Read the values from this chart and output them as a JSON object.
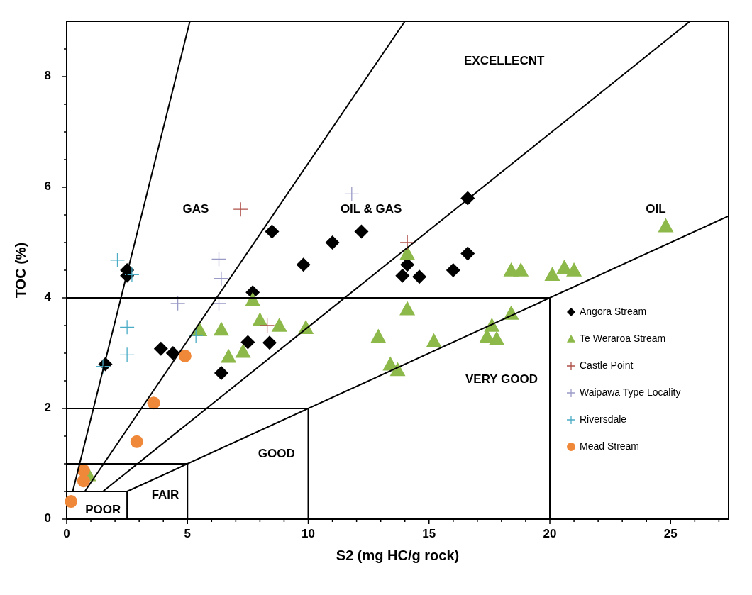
{
  "chart_data": {
    "type": "scatter",
    "xlabel": "S2 (mg HC/g rock)",
    "ylabel": "TOC (%)",
    "xlim": [
      0,
      27.4
    ],
    "xticks": [
      0,
      {
        "value": 1,
        "label": null
      },
      {
        "value": 2,
        "label": null
      },
      {
        "value": 3,
        "label": null
      },
      {
        "value": 4,
        "label": null
      },
      5,
      {
        "value": 6,
        "label": null
      },
      {
        "value": 7,
        "label": null
      },
      {
        "value": 8,
        "label": null
      },
      {
        "value": 9,
        "label": null
      },
      10,
      {
        "value": 11,
        "label": null
      },
      {
        "value": 12,
        "label": null
      },
      {
        "value": 13,
        "label": null
      },
      {
        "value": 14,
        "label": null
      },
      15,
      {
        "value": 16,
        "label": null
      },
      {
        "value": 17,
        "label": null
      },
      {
        "value": 18,
        "label": null
      },
      {
        "value": 19,
        "label": null
      },
      20,
      {
        "value": 21,
        "label": null
      },
      {
        "value": 22,
        "label": null
      },
      {
        "value": 23,
        "label": null
      },
      {
        "value": 24,
        "label": null
      },
      25,
      {
        "value": 26,
        "label": null
      },
      {
        "value": 27,
        "label": null
      }
    ],
    "ylim": [
      0,
      9
    ],
    "yticks": [
      0,
      {
        "value": 0.5,
        "label": null
      },
      {
        "value": 1,
        "label": null
      },
      {
        "value": 1.5,
        "label": null
      },
      2,
      {
        "value": 2.5,
        "label": null
      },
      {
        "value": 3,
        "label": null
      },
      {
        "value": 3.5,
        "label": null
      },
      4,
      {
        "value": 4.5,
        "label": null
      },
      {
        "value": 5,
        "label": null
      },
      {
        "value": 5.5,
        "label": null
      },
      6,
      {
        "value": 6.5,
        "label": null
      },
      {
        "value": 7,
        "label": null
      },
      {
        "value": 7.5,
        "label": null
      },
      8,
      {
        "value": 8.5,
        "label": null
      }
    ],
    "legend": "right",
    "series": [
      {
        "name": "Angora Stream",
        "color": "#000000",
        "marker": "diamond",
        "x": [
          1.6,
          2.5,
          2.5,
          3.9,
          4.4,
          6.4,
          7.5,
          8.4,
          7.7,
          8.5,
          9.8,
          11.0,
          12.2,
          16.6,
          13.9,
          14.1,
          14.6,
          16.0,
          16.6
        ],
        "values": [
          2.8,
          4.5,
          4.4,
          3.08,
          3.0,
          2.64,
          3.2,
          3.19,
          4.1,
          5.2,
          4.6,
          5.0,
          5.2,
          5.8,
          4.4,
          4.6,
          4.38,
          4.5,
          4.8
        ]
      },
      {
        "name": "Te Weraroa Stream",
        "color": "#8db84a",
        "marker": "triangle",
        "x": [
          0.9,
          5.5,
          6.4,
          6.7,
          7.3,
          7.7,
          8.0,
          8.8,
          9.9,
          12.9,
          13.4,
          13.7,
          14.1,
          14.1,
          15.2,
          17.4,
          17.6,
          17.8,
          18.4,
          18.4,
          18.8,
          20.1,
          20.6,
          21.0,
          24.8
        ],
        "values": [
          0.8,
          3.42,
          3.43,
          2.94,
          3.03,
          3.96,
          3.6,
          3.5,
          3.46,
          3.3,
          2.8,
          2.7,
          4.8,
          3.8,
          3.22,
          3.3,
          3.5,
          3.26,
          3.72,
          4.5,
          4.5,
          4.42,
          4.55,
          4.5,
          5.3
        ]
      },
      {
        "name": "Castle Point",
        "color": "#b0504a",
        "marker": "cross",
        "x": [
          7.2,
          8.3,
          14.1
        ],
        "values": [
          5.6,
          3.5,
          5.0
        ]
      },
      {
        "name": "Waipawa Type Locality",
        "color": "#9b9bc8",
        "marker": "cross",
        "x": [
          6.3,
          6.4,
          4.6,
          6.3,
          11.8
        ],
        "values": [
          4.7,
          4.35,
          3.9,
          3.9,
          5.88
        ]
      },
      {
        "name": "Riversdale",
        "color": "#4bacc6",
        "marker": "cross",
        "x": [
          2.1,
          2.7,
          2.5,
          2.5,
          1.5,
          5.35
        ],
        "values": [
          4.68,
          4.42,
          3.47,
          2.97,
          2.76,
          3.32
        ]
      },
      {
        "name": "Mead Stream",
        "color": "#f0883a",
        "marker": "circle",
        "x": [
          4.9,
          3.6,
          2.9,
          0.7,
          0.7,
          0.18
        ],
        "values": [
          2.95,
          2.1,
          1.4,
          0.88,
          0.69,
          0.32
        ]
      },
      {
        "type": "line",
        "color": "#000000",
        "marker": "none",
        "x": [
          0.25,
          5.1
        ],
        "values": [
          0.5,
          9
        ]
      },
      {
        "type": "line",
        "color": "#000000",
        "marker": "none",
        "x": [
          0.75,
          14.0
        ],
        "values": [
          0.5,
          9
        ]
      },
      {
        "type": "line",
        "color": "#000000",
        "marker": "none",
        "x": [
          1.5,
          25.8
        ],
        "values": [
          0.5,
          9
        ]
      },
      {
        "type": "line",
        "color": "#000000",
        "marker": "none",
        "x": [
          2.5,
          27.4
        ],
        "values": [
          0.5,
          5.48
        ]
      },
      {
        "type": "line",
        "color": "#000000",
        "marker": "none",
        "x": [
          0,
          20,
          20
        ],
        "values": [
          4,
          4,
          0
        ]
      },
      {
        "type": "line",
        "color": "#000000",
        "marker": "none",
        "x": [
          0,
          10,
          10
        ],
        "values": [
          2,
          2,
          0
        ]
      },
      {
        "type": "line",
        "color": "#000000",
        "marker": "none",
        "x": [
          0,
          5,
          5
        ],
        "values": [
          1,
          1,
          0
        ]
      },
      {
        "type": "line",
        "color": "#000000",
        "marker": "none",
        "x": [
          0,
          2.5,
          2.5
        ],
        "values": [
          0.5,
          0.5,
          0
        ]
      }
    ],
    "annotations": [
      "GAS",
      "OIL & GAS",
      "EXCELLECNT",
      "OIL",
      "VERY GOOD",
      "GOOD",
      "FAIR",
      "POOR"
    ]
  }
}
